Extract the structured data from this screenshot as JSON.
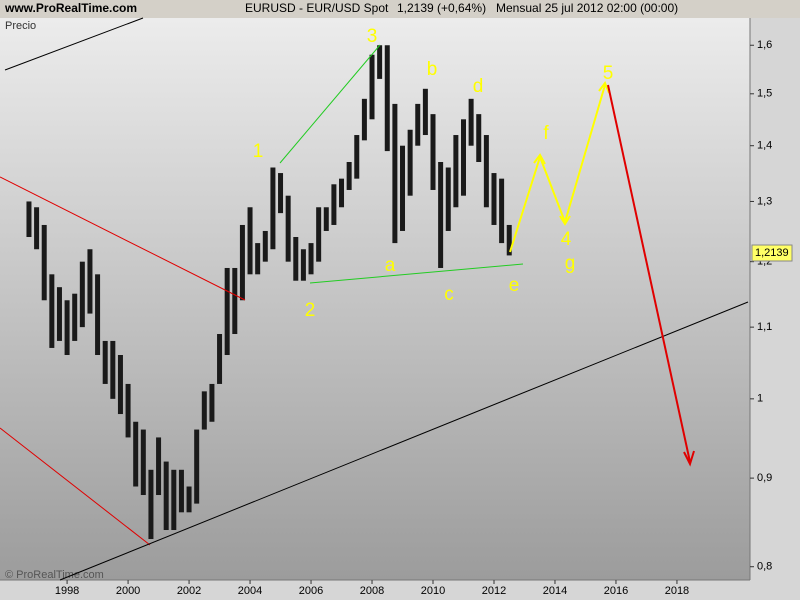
{
  "chart_data": {
    "type": "ohlc",
    "site": "www.ProRealTime.com",
    "instrument": "EURUSD - EUR/USD Spot",
    "quote": "1,2139 (+0,64%)",
    "period": "Mensual  25 jul 2012 02:00 (00:00)",
    "y_label": "Precio",
    "watermark": "© ProRealTime.com",
    "log_y": true,
    "color": "#1a1a1a",
    "x": [
      1996.75,
      1997,
      1997.25,
      1997.5,
      1997.75,
      1998,
      1998.25,
      1998.5,
      1998.75,
      1999,
      1999.25,
      1999.5,
      1999.75,
      2000,
      2000.25,
      2000.5,
      2000.75,
      2001,
      2001.25,
      2001.5,
      2001.75,
      2002,
      2002.25,
      2002.5,
      2002.75,
      2003,
      2003.25,
      2003.5,
      2003.75,
      2004,
      2004.25,
      2004.5,
      2004.75,
      2005,
      2005.25,
      2005.5,
      2005.75,
      2006,
      2006.25,
      2006.5,
      2006.75,
      2007,
      2007.25,
      2007.5,
      2007.75,
      2008,
      2008.25,
      2008.5,
      2008.75,
      2009,
      2009.25,
      2009.5,
      2009.75,
      2010,
      2010.25,
      2010.5,
      2010.75,
      2011,
      2011.25,
      2011.5,
      2011.75,
      2012,
      2012.25,
      2012.5
    ],
    "high": [
      1.3,
      1.29,
      1.26,
      1.18,
      1.16,
      1.14,
      1.15,
      1.2,
      1.22,
      1.18,
      1.08,
      1.08,
      1.06,
      1.02,
      0.97,
      0.96,
      0.91,
      0.95,
      0.92,
      0.91,
      0.91,
      0.89,
      0.96,
      1.01,
      1.02,
      1.09,
      1.19,
      1.19,
      1.26,
      1.29,
      1.23,
      1.25,
      1.36,
      1.35,
      1.31,
      1.24,
      1.22,
      1.23,
      1.29,
      1.29,
      1.33,
      1.34,
      1.37,
      1.42,
      1.49,
      1.58,
      1.6,
      1.6,
      1.48,
      1.4,
      1.43,
      1.48,
      1.51,
      1.46,
      1.37,
      1.36,
      1.42,
      1.45,
      1.49,
      1.46,
      1.42,
      1.35,
      1.34,
      1.26
    ],
    "low": [
      1.24,
      1.22,
      1.14,
      1.07,
      1.08,
      1.06,
      1.08,
      1.1,
      1.12,
      1.06,
      1.02,
      1.0,
      0.98,
      0.95,
      0.89,
      0.88,
      0.83,
      0.88,
      0.84,
      0.84,
      0.86,
      0.86,
      0.87,
      0.96,
      0.97,
      1.02,
      1.06,
      1.09,
      1.14,
      1.18,
      1.18,
      1.2,
      1.22,
      1.28,
      1.2,
      1.17,
      1.17,
      1.18,
      1.2,
      1.25,
      1.26,
      1.29,
      1.32,
      1.34,
      1.41,
      1.45,
      1.53,
      1.39,
      1.23,
      1.25,
      1.31,
      1.4,
      1.42,
      1.32,
      1.19,
      1.25,
      1.29,
      1.31,
      1.4,
      1.37,
      1.29,
      1.26,
      1.23,
      1.21
    ],
    "last_price": {
      "value": 1.2139,
      "label": "1,2139"
    },
    "xlim": [
      1995.8,
      2020.33
    ],
    "xticks": [
      1998,
      2000,
      2002,
      2004,
      2006,
      2008,
      2010,
      2012,
      2014,
      2016,
      2018
    ],
    "ylim": [
      0.786,
      1.659
    ],
    "yticks": [
      {
        "value": 1.6,
        "label": "1,6"
      },
      {
        "value": 1.5,
        "label": "1,5"
      },
      {
        "value": 1.4,
        "label": "1,4"
      },
      {
        "value": 1.3,
        "label": "1,3"
      },
      {
        "value": 1.2,
        "label": "1,2"
      },
      {
        "value": 1.1,
        "label": "1,1"
      },
      1,
      {
        "value": 0.9,
        "label": "0,9"
      },
      {
        "value": 0.8,
        "label": "0,8"
      }
    ],
    "annotations": [
      "3",
      "1",
      "2",
      "b",
      "d",
      "a",
      "c",
      "e",
      "f",
      "4",
      "g",
      "5"
    ]
  }
}
